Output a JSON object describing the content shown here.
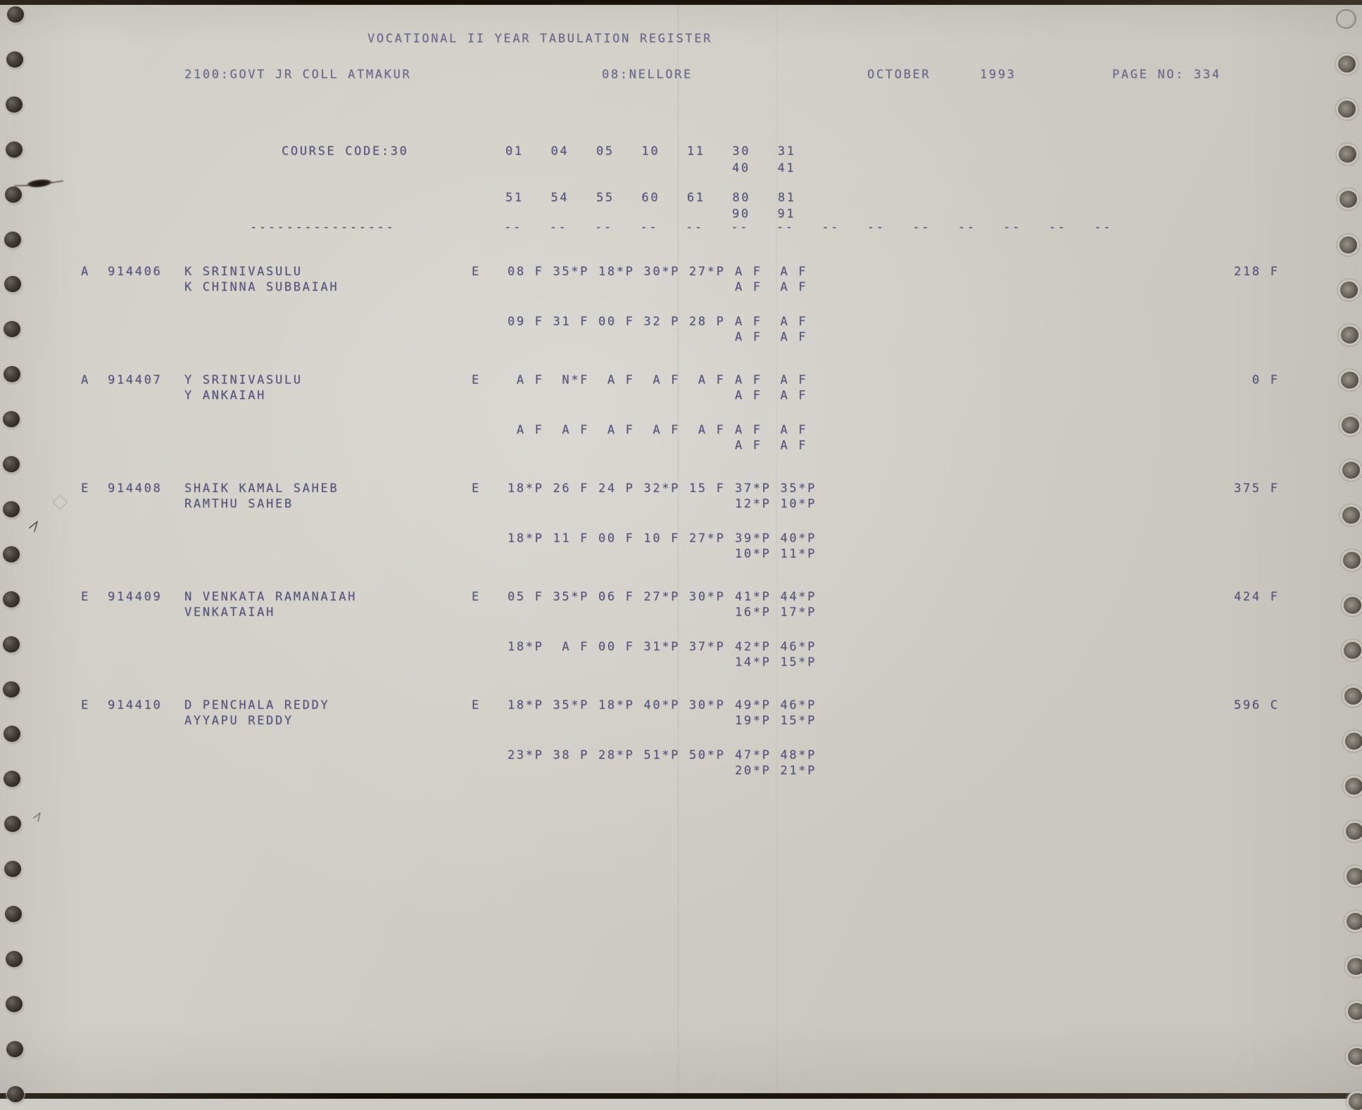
{
  "page": {
    "title": "VOCATIONAL II YEAR TABULATION REGISTER",
    "college": "2100:GOVT JR COLL ATMAKUR",
    "district": "08:NELLORE",
    "month": "OCTOBER",
    "year": "1993",
    "page_no": "PAGE NO: 334"
  },
  "course": {
    "code_label": "COURSE CODE:30",
    "subjects_row1": "01   04   05   10   11   30   31",
    "subjects_row1b": "40   41",
    "subjects_row2": "51   54   55   60   61   80   81",
    "subjects_row2b": "90   91",
    "separator": "----------------            --   --   --   --   --   --   --   --   --   --   --   --   --   --"
  },
  "records": [
    {
      "status": "A",
      "regno": "914406",
      "name": "K SRINIVASULU",
      "father_name": "K CHINNA SUBBAIAH",
      "medium": "E",
      "marks_row1": "08 F 35*P 18*P 30*P 27*P",
      "pair_row1": "A F  A F",
      "pair_row1b": "A F  A F",
      "marks_row2": "09 F 31 F 00 F 32 P 28 P",
      "pair_row2": "A F  A F",
      "pair_row2b": "A F  A F",
      "total": "218 F"
    },
    {
      "status": "A",
      "regno": "914407",
      "name": "Y SRINIVASULU",
      "father_name": "Y ANKAIAH",
      "medium": "E",
      "marks_row1": " A F  N*F  A F  A F  A F",
      "pair_row1": "A F  A F",
      "pair_row1b": "A F  A F",
      "marks_row2": " A F  A F  A F  A F  A F",
      "pair_row2": "A F  A F",
      "pair_row2b": "A F  A F",
      "total": "  0 F"
    },
    {
      "status": "E",
      "regno": "914408",
      "name": "SHAIK KAMAL SAHEB",
      "father_name": "RAMTHU SAHEB",
      "medium": "E",
      "marks_row1": "18*P 26 F 24 P 32*P 15 F",
      "pair_row1": "37*P 35*P",
      "pair_row1b": "12*P 10*P",
      "marks_row2": "18*P 11 F 00 F 10 F 27*P",
      "pair_row2": "39*P 40*P",
      "pair_row2b": "10*P 11*P",
      "total": "375 F"
    },
    {
      "status": "E",
      "regno": "914409",
      "name": "N VENKATA RAMANAIAH",
      "father_name": "VENKATAIAH",
      "medium": "E",
      "marks_row1": "05 F 35*P 06 F 27*P 30*P",
      "pair_row1": "41*P 44*P",
      "pair_row1b": "16*P 17*P",
      "marks_row2": "18*P  A F 00 F 31*P 37*P",
      "pair_row2": "42*P 46*P",
      "pair_row2b": "14*P 15*P",
      "total": "424 F"
    },
    {
      "status": "E",
      "regno": "914410",
      "name": "D PENCHALA REDDY",
      "father_name": "AYYAPU REDDY",
      "medium": "E",
      "marks_row1": "18*P 35*P 18*P 40*P 30*P",
      "pair_row1": "49*P 46*P",
      "pair_row1b": "19*P 15*P",
      "marks_row2": "23*P 38 P 28*P 51*P 50*P",
      "pair_row2": "47*P 48*P",
      "pair_row2b": "20*P 21*P",
      "total": "596 C"
    }
  ]
}
